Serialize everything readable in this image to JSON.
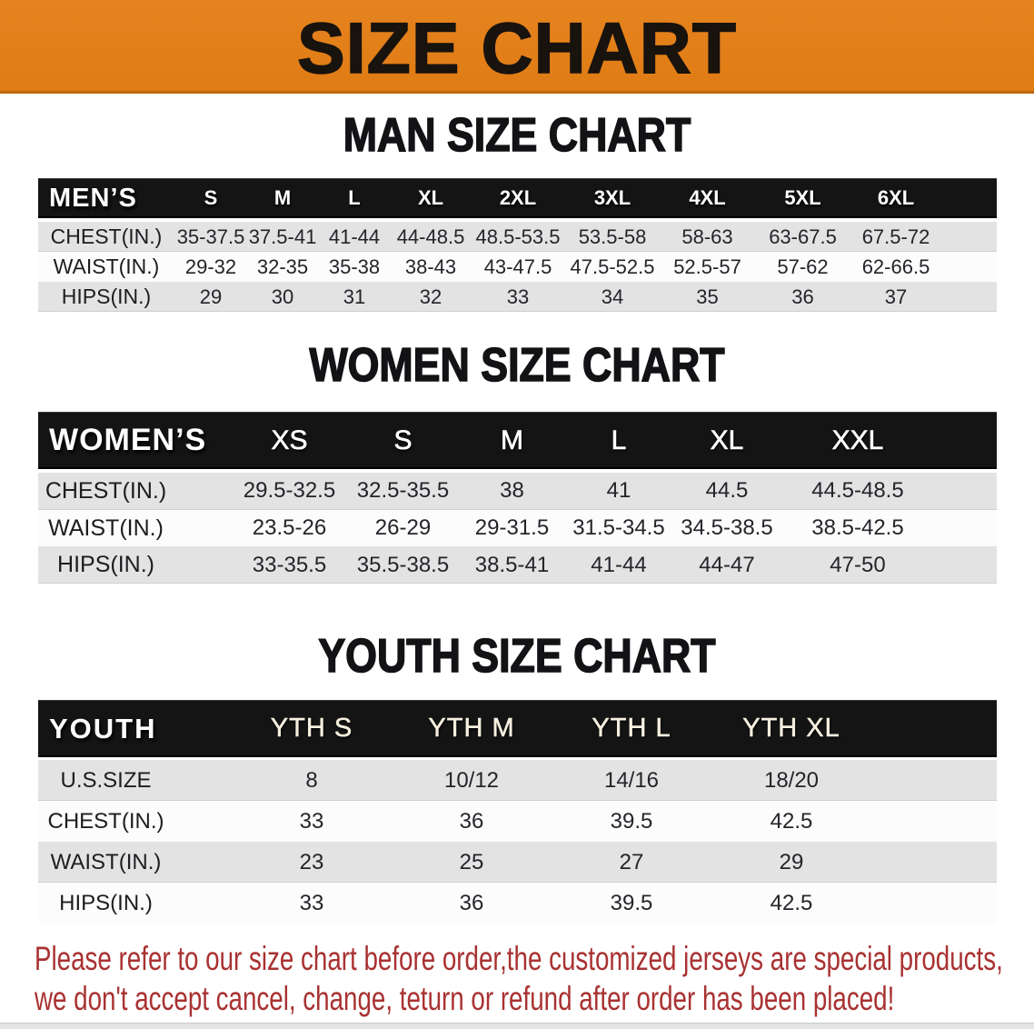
{
  "banner": {
    "title": "SIZE CHART",
    "background_color": "#e28019",
    "text_color": "#19130e"
  },
  "sections": [
    {
      "id": "men",
      "title": "MAN SIZE CHART",
      "header_label": "MEN’S",
      "columns": [
        "S",
        "M",
        "L",
        "XL",
        "2XL",
        "3XL",
        "4XL",
        "5XL",
        "6XL"
      ],
      "rows": [
        {
          "label": "CHEST(IN.)",
          "values": [
            "35-37.5",
            "37.5-41",
            "41-44",
            "44-48.5",
            "48.5-53.5",
            "53.5-58",
            "58-63",
            "63-67.5",
            "67.5-72"
          ]
        },
        {
          "label": "WAIST(IN.)",
          "values": [
            "29-32",
            "32-35",
            "35-38",
            "38-43",
            "43-47.5",
            "47.5-52.5",
            "52.5-57",
            "57-62",
            "62-66.5"
          ]
        },
        {
          "label": "HIPS(IN.)",
          "values": [
            "29",
            "30",
            "31",
            "32",
            "33",
            "34",
            "35",
            "36",
            "37"
          ]
        }
      ]
    },
    {
      "id": "women",
      "title": "WOMEN SIZE CHART",
      "header_label": "WOMEN’S",
      "columns": [
        "XS",
        "S",
        "M",
        "L",
        "XL",
        "XXL"
      ],
      "rows": [
        {
          "label": "CHEST(IN.)",
          "values": [
            "29.5-32.5",
            "32.5-35.5",
            "38",
            "41",
            "44.5",
            "44.5-48.5"
          ]
        },
        {
          "label": "WAIST(IN.)",
          "values": [
            "23.5-26",
            "26-29",
            "29-31.5",
            "31.5-34.5",
            "34.5-38.5",
            "38.5-42.5"
          ]
        },
        {
          "label": "HIPS(IN.)",
          "values": [
            "33-35.5",
            "35.5-38.5",
            "38.5-41",
            "41-44",
            "44-47",
            "47-50"
          ]
        }
      ]
    },
    {
      "id": "youth",
      "title": "YOUTH SIZE CHART",
      "header_label": "YOUTH",
      "columns": [
        "YTH S",
        "YTH M",
        "YTH L",
        "YTH XL"
      ],
      "rows": [
        {
          "label": "U.S.SIZE",
          "values": [
            "8",
            "10/12",
            "14/16",
            "18/20"
          ]
        },
        {
          "label": "CHEST(IN.)",
          "values": [
            "33",
            "36",
            "39.5",
            "42.5"
          ]
        },
        {
          "label": "WAIST(IN.)",
          "values": [
            "23",
            "25",
            "27",
            "29"
          ]
        },
        {
          "label": "HIPS(IN.)",
          "values": [
            "33",
            "36",
            "39.5",
            "42.5"
          ]
        }
      ]
    }
  ],
  "footer": {
    "line1": "Please refer to our size chart before order,the customized jerseys are special products,",
    "line2": "we don't accept cancel, change, teturn or refund after order has been placed!",
    "text_color": "#a93131"
  }
}
